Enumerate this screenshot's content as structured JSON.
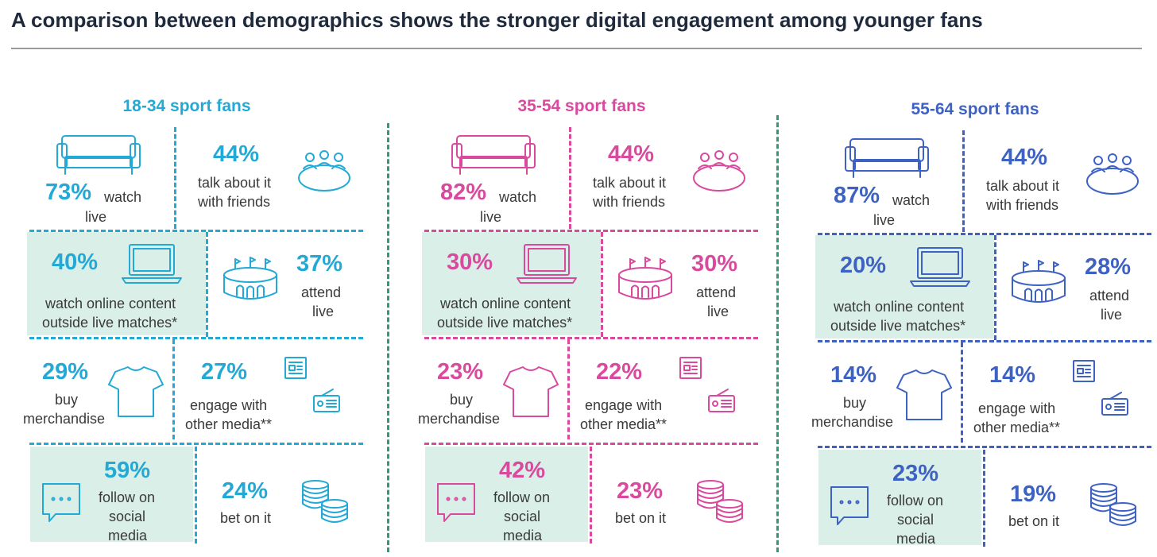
{
  "title": "A comparison between demographics shows the stronger digital engagement among younger fans",
  "colors": {
    "divider": "#2f9a78",
    "highlight": "#d9efe8",
    "rule": "#9a9a9a",
    "title": "#1f2a3c"
  },
  "labels": {
    "watch": "watch",
    "live": "live",
    "talk_line1": "talk about it",
    "talk_line2": "with friends",
    "online_line1": "watch online content",
    "online_line2": "outside live matches*",
    "attend": "attend",
    "buy": "buy",
    "merch": "merchandise",
    "engage_line1": "engage with",
    "engage_line2": "other media**",
    "follow": "follow on",
    "social": "social",
    "media": "media",
    "bet": "bet on it"
  },
  "groups": [
    {
      "title": "18-34 sport fans",
      "color": "#23a9d6",
      "watch_live": "73%",
      "talk_friends": "44%",
      "online_content": "40%",
      "attend_live": "37%",
      "buy_merch": "29%",
      "other_media": "27%",
      "social_media": "59%",
      "bet": "24%"
    },
    {
      "title": "35-54 sport fans",
      "color": "#d94a9e",
      "watch_live": "82%",
      "talk_friends": "44%",
      "online_content": "30%",
      "attend_live": "30%",
      "buy_merch": "23%",
      "other_media": "22%",
      "social_media": "42%",
      "bet": "23%"
    },
    {
      "title": "55-64 sport fans",
      "color": "#3d62c4",
      "watch_live": "87%",
      "talk_friends": "44%",
      "online_content": "20%",
      "attend_live": "28%",
      "buy_merch": "14%",
      "other_media": "14%",
      "social_media": "23%",
      "bet": "19%"
    }
  ]
}
